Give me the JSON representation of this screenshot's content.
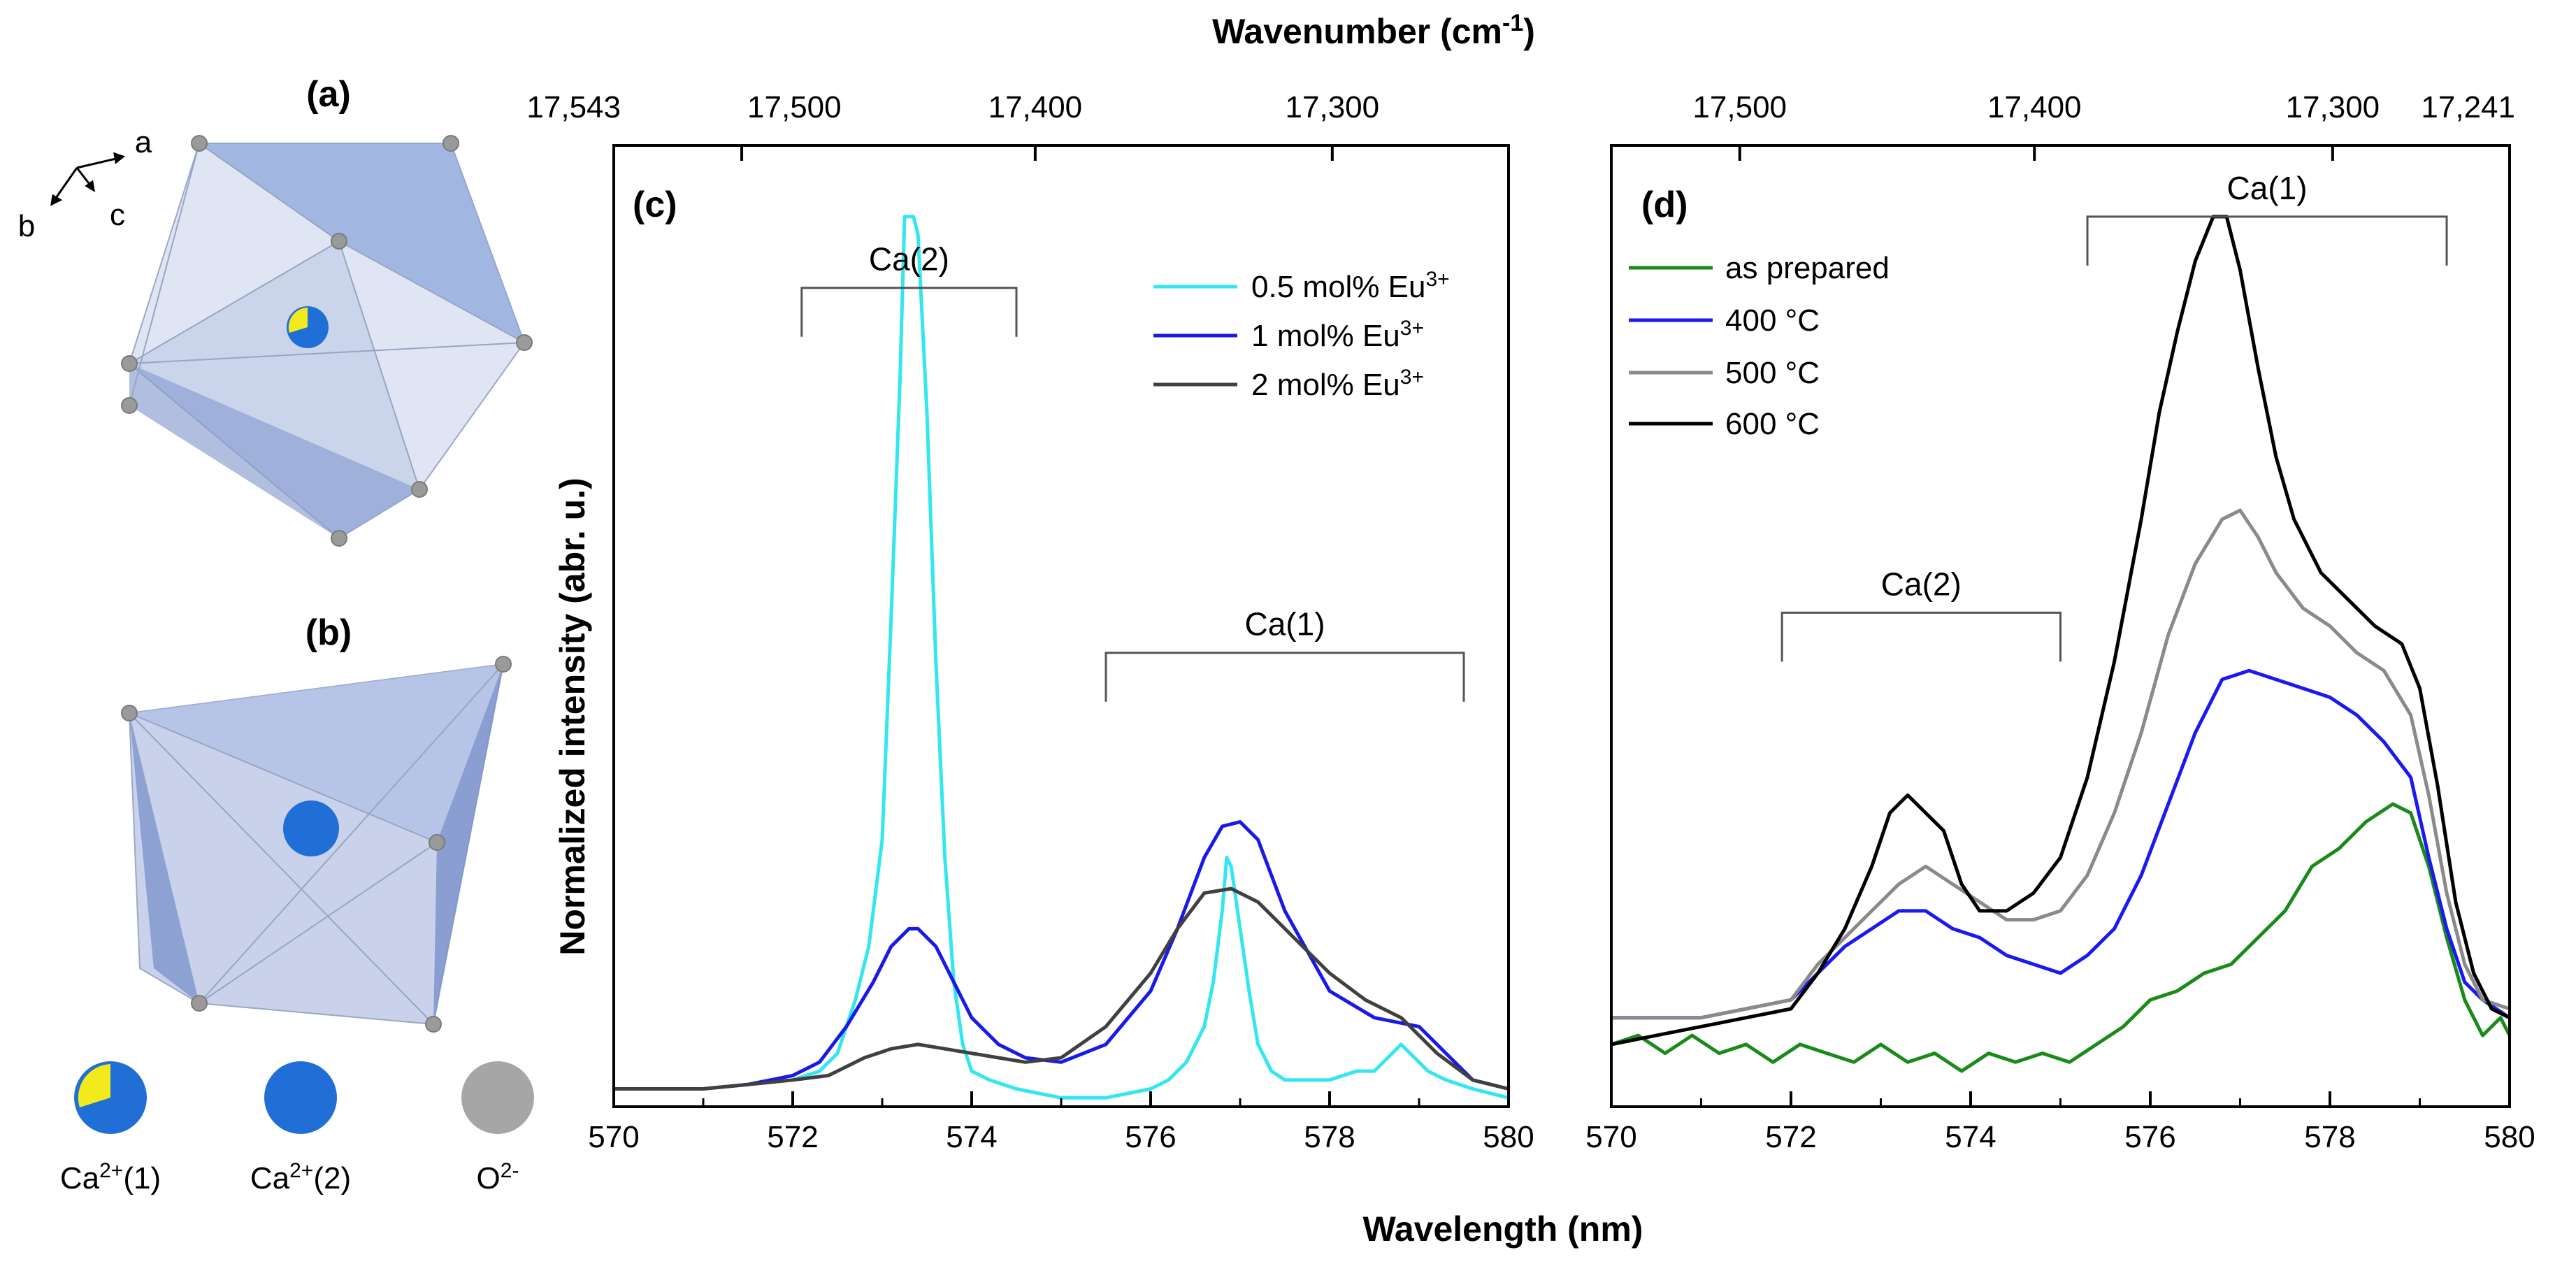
{
  "panel_labels": {
    "a": "(a)",
    "b": "(b)",
    "c": "(c)",
    "d": "(d)"
  },
  "structure": {
    "axis_labels": {
      "a": "a",
      "b": "b",
      "c": "c"
    },
    "legend": {
      "ca1_parts": [
        "Ca",
        "2+",
        "(1)"
      ],
      "ca2_parts": [
        "Ca",
        "2+",
        "(2)"
      ],
      "o_parts": [
        "O",
        "2-"
      ]
    },
    "colors": {
      "ca": "#1f6fd6",
      "ca_cut": "#f2ea1c",
      "oxygen": "#9a9a9a",
      "polyhedron": "#8fa6d8"
    }
  },
  "chart_data": [
    {
      "id": "c",
      "type": "line",
      "xlabel": "Wavelength (nm)",
      "ylabel": "Normalized intensity (abr. u.)",
      "top_axis_title_parts": [
        "Wavenumber (cm",
        "-1",
        ")"
      ],
      "xlim": [
        570,
        580
      ],
      "ylim": [
        0,
        1.08
      ],
      "x_ticks": [
        570,
        572,
        574,
        576,
        578,
        580
      ],
      "x_tick_labels": [
        "570",
        "572",
        "574",
        "576",
        "578",
        "580"
      ],
      "top_ticks": [
        {
          "label": "17,543",
          "wavelength": 570.0
        },
        {
          "label": "17,500",
          "wavelength": 571.43
        },
        {
          "label": "17,400",
          "wavelength": 574.71
        },
        {
          "label": "17,300",
          "wavelength": 578.03
        }
      ],
      "brackets": [
        {
          "label": "Ca(2)",
          "x_start": 572.1,
          "x_end": 574.5,
          "y": 0.92
        },
        {
          "label": "Ca(1)",
          "x_start": 575.5,
          "x_end": 579.5,
          "y": 0.51
        }
      ],
      "series": [
        {
          "name_parts": [
            "0.5 mol% Eu",
            "3+"
          ],
          "color": "#33e6f0",
          "x": [
            570,
            570.5,
            571,
            571.5,
            572,
            572.3,
            572.5,
            572.7,
            572.85,
            573.0,
            573.1,
            573.2,
            573.25,
            573.3,
            573.35,
            573.4,
            573.5,
            573.6,
            573.7,
            573.8,
            573.9,
            574.0,
            574.2,
            574.5,
            575,
            575.5,
            576,
            576.2,
            576.4,
            576.6,
            576.7,
            576.8,
            576.85,
            576.9,
            577.0,
            577.1,
            577.2,
            577.35,
            577.5,
            578,
            578.3,
            578.5,
            578.7,
            578.8,
            578.9,
            579.1,
            579.3,
            579.6,
            580
          ],
          "y": [
            0.02,
            0.02,
            0.02,
            0.025,
            0.03,
            0.04,
            0.06,
            0.12,
            0.18,
            0.3,
            0.55,
            0.82,
            1.0,
            1.0,
            1.0,
            0.98,
            0.78,
            0.5,
            0.28,
            0.14,
            0.07,
            0.04,
            0.03,
            0.02,
            0.01,
            0.01,
            0.02,
            0.03,
            0.05,
            0.09,
            0.14,
            0.22,
            0.28,
            0.27,
            0.2,
            0.13,
            0.07,
            0.04,
            0.03,
            0.03,
            0.04,
            0.04,
            0.06,
            0.07,
            0.06,
            0.04,
            0.03,
            0.02,
            0.01
          ]
        },
        {
          "name_parts": [
            "1 mol% Eu",
            "3+"
          ],
          "color": "#1a1ae6",
          "x": [
            570,
            570.5,
            571,
            571.5,
            572,
            572.3,
            572.6,
            572.9,
            573.1,
            573.3,
            573.4,
            573.6,
            573.8,
            574.0,
            574.3,
            574.6,
            575,
            575.5,
            576,
            576.3,
            576.6,
            576.8,
            577,
            577.2,
            577.5,
            578,
            578.5,
            579,
            579.3,
            579.6,
            580
          ],
          "y": [
            0.02,
            0.02,
            0.02,
            0.025,
            0.035,
            0.05,
            0.09,
            0.14,
            0.18,
            0.2,
            0.2,
            0.18,
            0.14,
            0.1,
            0.07,
            0.055,
            0.05,
            0.07,
            0.13,
            0.2,
            0.28,
            0.315,
            0.32,
            0.3,
            0.22,
            0.13,
            0.1,
            0.09,
            0.06,
            0.03,
            0.02
          ]
        },
        {
          "name_parts": [
            "2 mol% Eu",
            "3+"
          ],
          "color": "#404040",
          "x": [
            570,
            570.5,
            571,
            571.5,
            572,
            572.4,
            572.8,
            573.1,
            573.4,
            573.7,
            574,
            574.3,
            574.6,
            575,
            575.5,
            576,
            576.3,
            576.6,
            576.9,
            577.2,
            577.5,
            578,
            578.4,
            578.8,
            579.2,
            579.6,
            580
          ],
          "y": [
            0.02,
            0.02,
            0.02,
            0.025,
            0.03,
            0.035,
            0.055,
            0.065,
            0.07,
            0.065,
            0.06,
            0.055,
            0.05,
            0.055,
            0.09,
            0.15,
            0.2,
            0.24,
            0.245,
            0.23,
            0.2,
            0.15,
            0.12,
            0.1,
            0.06,
            0.03,
            0.02
          ]
        }
      ]
    },
    {
      "id": "d",
      "type": "line",
      "xlabel": "Wavelength (nm)",
      "xlim": [
        570,
        580
      ],
      "ylim": [
        0,
        1.08
      ],
      "x_ticks": [
        570,
        572,
        574,
        576,
        578,
        580
      ],
      "x_tick_labels": [
        "570",
        "572",
        "574",
        "576",
        "578",
        "580"
      ],
      "top_ticks": [
        {
          "label": "17,500",
          "wavelength": 571.43
        },
        {
          "label": "17,400",
          "wavelength": 574.71
        },
        {
          "label": "17,300",
          "wavelength": 578.03
        },
        {
          "label": "17,241",
          "wavelength": 580.0
        }
      ],
      "brackets": [
        {
          "label": "Ca(2)",
          "x_start": 571.9,
          "x_end": 575.0,
          "y": 0.555
        },
        {
          "label": "Ca(1)",
          "x_start": 575.3,
          "x_end": 579.3,
          "y": 1.0
        }
      ],
      "series": [
        {
          "name": "as prepared",
          "color": "#1a8a1a",
          "x": [
            570,
            570.3,
            570.6,
            570.9,
            571.2,
            571.5,
            571.8,
            572.1,
            572.4,
            572.7,
            573.0,
            573.3,
            573.6,
            573.9,
            574.2,
            574.5,
            574.8,
            575.1,
            575.4,
            575.7,
            576.0,
            576.3,
            576.6,
            576.9,
            577.2,
            577.5,
            577.8,
            578.1,
            578.4,
            578.7,
            578.9,
            579.1,
            579.3,
            579.5,
            579.7,
            579.9,
            580
          ],
          "y": [
            0.07,
            0.08,
            0.06,
            0.08,
            0.06,
            0.07,
            0.05,
            0.07,
            0.06,
            0.05,
            0.07,
            0.05,
            0.06,
            0.04,
            0.06,
            0.05,
            0.06,
            0.05,
            0.07,
            0.09,
            0.12,
            0.13,
            0.15,
            0.16,
            0.19,
            0.22,
            0.27,
            0.29,
            0.32,
            0.34,
            0.33,
            0.27,
            0.19,
            0.12,
            0.08,
            0.1,
            0.08
          ]
        },
        {
          "name": "400 °C",
          "color": "#1a1af0",
          "x": [
            570,
            570.5,
            571,
            571.5,
            572,
            572.3,
            572.6,
            572.9,
            573.2,
            573.5,
            573.8,
            574.1,
            574.4,
            574.7,
            575.0,
            575.3,
            575.6,
            575.9,
            576.2,
            576.5,
            576.8,
            577.1,
            577.4,
            577.7,
            578.0,
            578.3,
            578.6,
            578.9,
            579.1,
            579.3,
            579.5,
            579.7,
            580
          ],
          "y": [
            0.1,
            0.1,
            0.1,
            0.11,
            0.12,
            0.15,
            0.18,
            0.2,
            0.22,
            0.22,
            0.2,
            0.19,
            0.17,
            0.16,
            0.15,
            0.17,
            0.2,
            0.26,
            0.34,
            0.42,
            0.48,
            0.49,
            0.48,
            0.47,
            0.46,
            0.44,
            0.41,
            0.37,
            0.28,
            0.2,
            0.14,
            0.12,
            0.1
          ]
        },
        {
          "name": "500 °C",
          "color": "#8a8a8a",
          "x": [
            570,
            570.5,
            571,
            571.5,
            572,
            572.3,
            572.6,
            572.9,
            573.2,
            573.5,
            573.8,
            574.1,
            574.4,
            574.7,
            575.0,
            575.3,
            575.6,
            575.9,
            576.2,
            576.5,
            576.8,
            577.0,
            577.2,
            577.4,
            577.7,
            578.0,
            578.3,
            578.6,
            578.9,
            579.1,
            579.3,
            579.5,
            579.7,
            580
          ],
          "y": [
            0.1,
            0.1,
            0.1,
            0.11,
            0.12,
            0.16,
            0.19,
            0.22,
            0.25,
            0.27,
            0.25,
            0.23,
            0.21,
            0.21,
            0.22,
            0.26,
            0.33,
            0.42,
            0.53,
            0.61,
            0.66,
            0.67,
            0.64,
            0.6,
            0.56,
            0.54,
            0.51,
            0.49,
            0.44,
            0.35,
            0.24,
            0.16,
            0.12,
            0.11
          ]
        },
        {
          "name": "600 °C",
          "color": "#000000",
          "x": [
            570,
            570.5,
            571,
            571.5,
            572,
            572.3,
            572.6,
            572.9,
            573.1,
            573.3,
            573.5,
            573.7,
            573.9,
            574.1,
            574.4,
            574.7,
            575.0,
            575.3,
            575.6,
            575.9,
            576.1,
            576.3,
            576.5,
            576.7,
            576.85,
            577.0,
            577.2,
            577.4,
            577.6,
            577.9,
            578.2,
            578.5,
            578.8,
            579.0,
            579.2,
            579.4,
            579.6,
            579.8,
            580
          ],
          "y": [
            0.07,
            0.08,
            0.09,
            0.1,
            0.11,
            0.15,
            0.2,
            0.27,
            0.33,
            0.35,
            0.33,
            0.31,
            0.25,
            0.22,
            0.22,
            0.24,
            0.28,
            0.37,
            0.5,
            0.66,
            0.78,
            0.87,
            0.95,
            1.0,
            1.0,
            0.94,
            0.83,
            0.73,
            0.66,
            0.6,
            0.57,
            0.54,
            0.52,
            0.47,
            0.36,
            0.23,
            0.15,
            0.11,
            0.1
          ]
        }
      ]
    }
  ]
}
